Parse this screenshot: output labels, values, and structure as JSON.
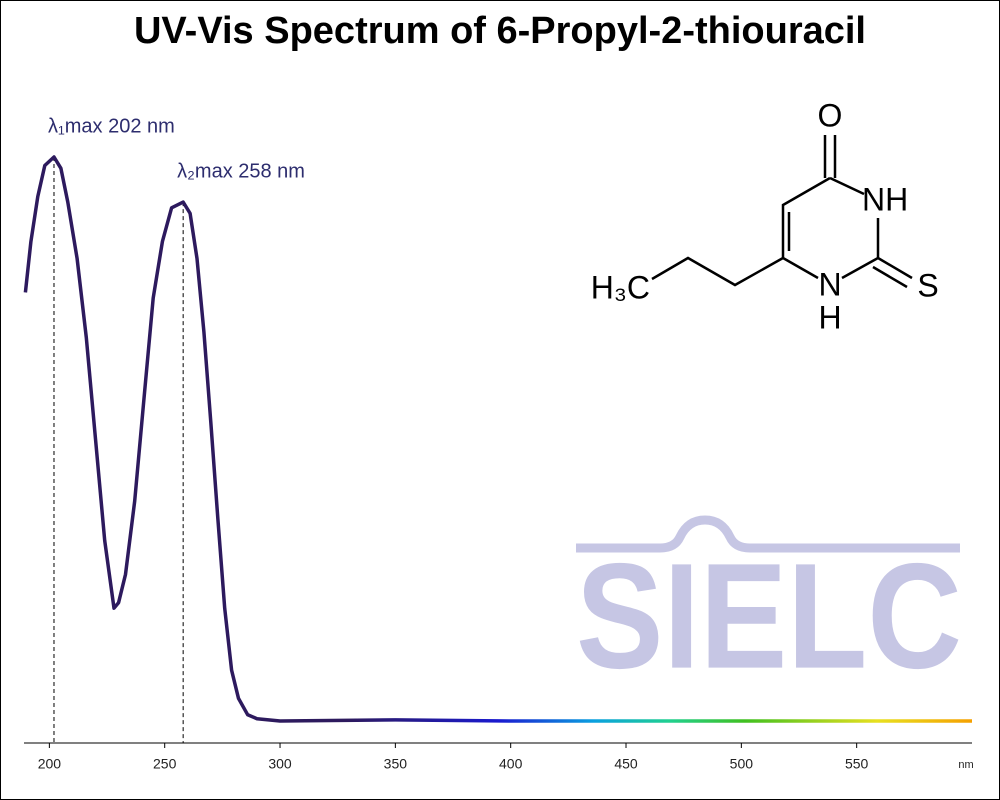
{
  "chart_data": {
    "type": "line",
    "title": "UV-Vis Spectrum of 6-Propyl-2-thiouracil",
    "xlabel": "nm",
    "x": [
      189.6,
      192,
      195,
      198,
      202,
      205,
      208,
      212,
      216,
      220,
      224,
      228,
      230,
      233,
      237,
      241,
      245,
      249,
      253,
      258,
      261,
      264,
      267,
      270,
      273,
      276,
      279,
      282,
      286,
      290,
      300,
      350,
      400,
      450,
      500,
      550,
      600
    ],
    "values": [
      0.76,
      0.85,
      0.93,
      0.985,
      1.0,
      0.98,
      0.92,
      0.82,
      0.68,
      0.5,
      0.32,
      0.2,
      0.21,
      0.26,
      0.39,
      0.57,
      0.75,
      0.85,
      0.91,
      0.92,
      0.9,
      0.82,
      0.69,
      0.53,
      0.36,
      0.2,
      0.09,
      0.04,
      0.011,
      0.004,
      0.0,
      0.002,
      0.0,
      0.0,
      0.0,
      0.0,
      0.0
    ],
    "color": "#2d1a5e",
    "xlim": [
      189,
      600
    ],
    "xticks": [
      200,
      250,
      300,
      350,
      400,
      450,
      500,
      550
    ],
    "annotations": [
      {
        "x": 202,
        "label": "λ₁max  202 nm"
      },
      {
        "x": 258,
        "label": "λ₂max  258 nm"
      }
    ]
  },
  "structure": {
    "oxygen": "O",
    "nh": "NH",
    "n": "N",
    "h": "H",
    "sulfur": "S",
    "methyl": "H₃C"
  },
  "watermark": "SIELC"
}
